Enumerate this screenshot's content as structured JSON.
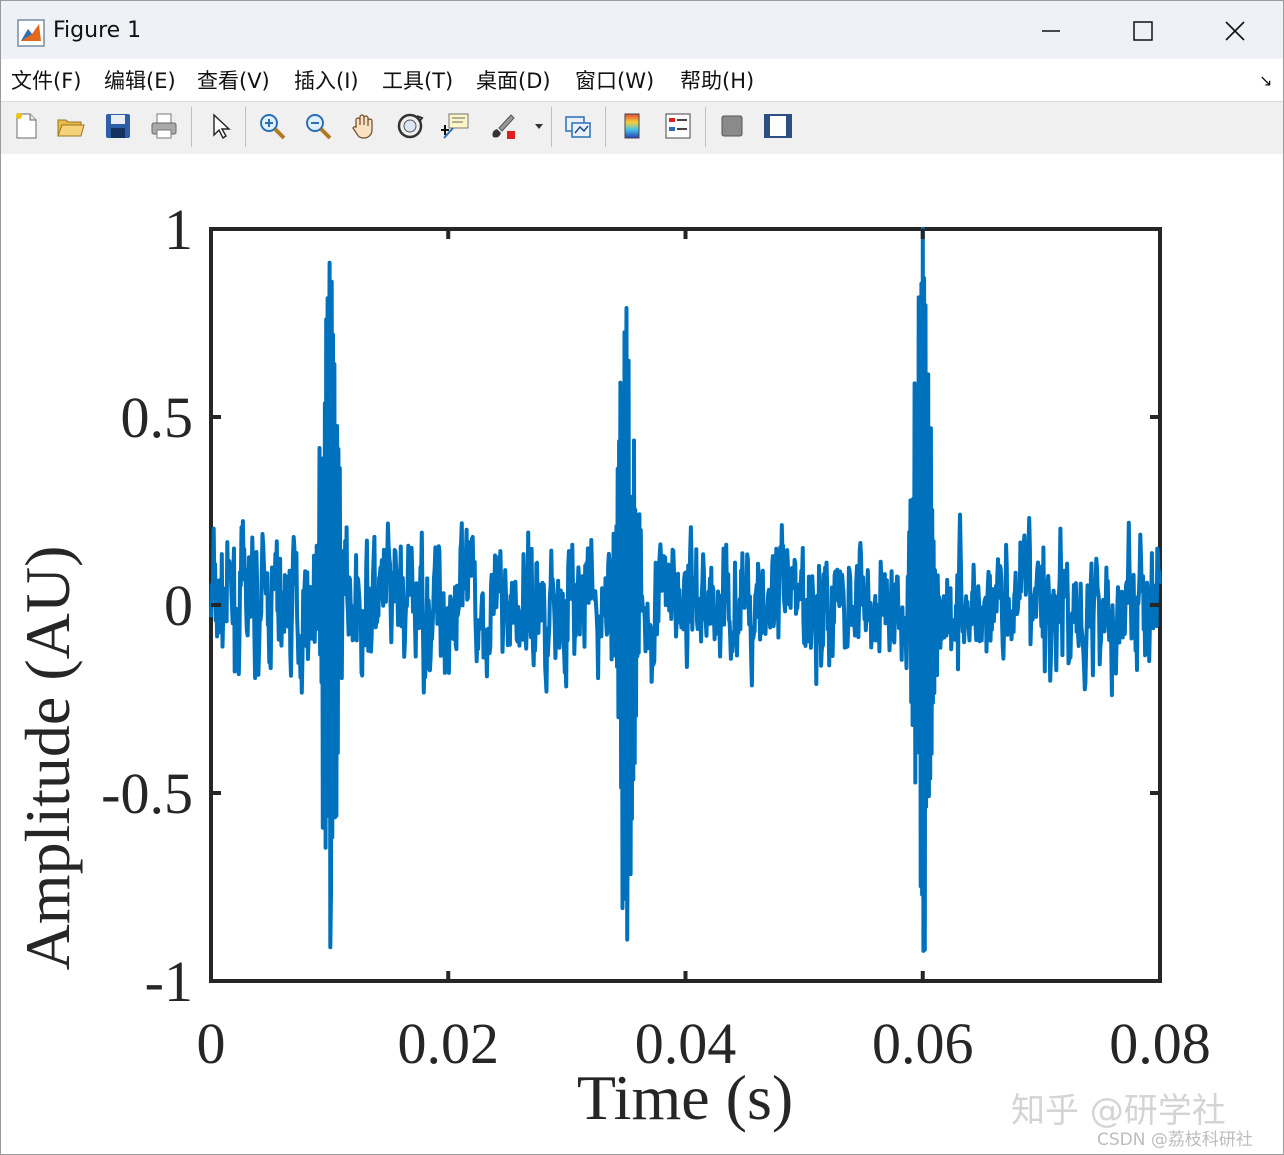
{
  "window": {
    "title": "Figure 1",
    "minimize_glyph": "—",
    "maximize_glyph": "☐",
    "close_glyph": "✕"
  },
  "menu": {
    "items": [
      "文件(F)",
      "编辑(E)",
      "查看(V)",
      "插入(I)",
      "工具(T)",
      "桌面(D)",
      "窗口(W)",
      "帮助(H)"
    ],
    "overflow_glyph": "↘"
  },
  "toolbar": {
    "icons": [
      "new-figure-icon",
      "open-file-icon",
      "save-icon",
      "print-icon",
      "pointer-icon",
      "zoom-in-icon",
      "zoom-out-icon",
      "pan-hand-icon",
      "rotate-3d-icon",
      "data-cursor-icon",
      "brush-icon",
      "brush-dropdown-icon",
      "link-plot-icon",
      "colorbar-icon",
      "legend-icon",
      "hide-plot-tools-icon",
      "show-plot-tools-icon"
    ]
  },
  "chart_data": {
    "type": "line",
    "title": "",
    "xlabel": "Time (s)",
    "ylabel": "Amplitude (AU)",
    "xlim": [
      0,
      0.08
    ],
    "ylim": [
      -1,
      1
    ],
    "xticks": [
      0,
      0.02,
      0.04,
      0.06,
      0.08
    ],
    "xtick_labels": [
      "0",
      "0.02",
      "0.04",
      "0.06",
      "0.08"
    ],
    "yticks": [
      -1,
      -0.5,
      0,
      0.5,
      1
    ],
    "ytick_labels": [
      "-1",
      "-0.5",
      "0",
      "0.5",
      "1"
    ],
    "grid": false,
    "box": true,
    "line_color": "#0072BD",
    "noise_amplitude": 0.12,
    "series": [
      {
        "impulses": [
          {
            "t": 0.01,
            "peak_pos": 0.91,
            "peak_neg": -0.91
          },
          {
            "t": 0.035,
            "peak_pos": 0.79,
            "peak_neg": -0.89
          },
          {
            "t": 0.06,
            "peak_pos": 1.0,
            "peak_neg": -0.92
          }
        ]
      }
    ]
  },
  "watermark": {
    "text": "知乎 @研学社",
    "subtext": "CSDN @荔枝科研社"
  },
  "colors": {
    "titlebar_bg": "#eef2f7",
    "toolbar_bg": "#f0f0f0",
    "axes": "#262626"
  }
}
